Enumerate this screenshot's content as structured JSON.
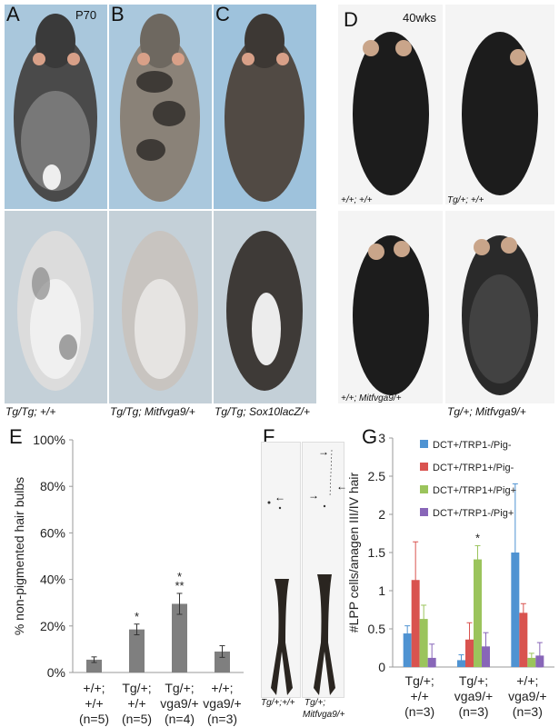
{
  "panels": {
    "A": {
      "letter": "A",
      "age": "P70",
      "caption": "Tg/Tg; +/+"
    },
    "B": {
      "letter": "B",
      "caption": "Tg/Tg; Mitfvga9/+"
    },
    "C": {
      "letter": "C",
      "caption": "Tg/Tg; Sox10lacZ/+"
    },
    "D": {
      "letter": "D",
      "age": "40wks",
      "captions": [
        "+/+; +/+",
        "Tg/+; +/+",
        "+/+; Mitfvga9/+",
        "Tg/+; Mitfvga9/+"
      ]
    },
    "E": {
      "letter": "E"
    },
    "F": {
      "letter": "F",
      "caption_left": "Tg/+;+/+",
      "caption_right_line1": "Tg/+;",
      "caption_right_line2": "Mitfvga9/+"
    },
    "G": {
      "letter": "G"
    }
  },
  "colors": {
    "bar_gray": "#7f7f7f",
    "dct_trp1neg_pigneg": "#4f93d2",
    "dct_trp1pos_pigneg": "#d9534f",
    "dct_trp1pos_pigpos": "#9bc45c",
    "dct_trp1neg_pigpos": "#8866b8",
    "photo_bg_blue": "#aac8dd",
    "photo_bg_white": "#f2f2f2",
    "mouse_black": "#1c1c1c"
  },
  "chart_data": [
    {
      "type": "bar",
      "panel": "E",
      "ylabel": "% non-pigmented hair bulbs",
      "ylim": [
        0,
        100
      ],
      "yticks": [
        "0%",
        "20%",
        "40%",
        "60%",
        "80%",
        "100%"
      ],
      "categories": [
        {
          "line1": "+/+;",
          "line2": "+/+",
          "line3": "(n=5)"
        },
        {
          "line1": "Tg/+;",
          "line2": "+/+",
          "line3": "(n=5)"
        },
        {
          "line1": "Tg/+;",
          "line2": "vga9/+",
          "line3": "(n=4)"
        },
        {
          "line1": "+/+;",
          "line2": "vga9/+",
          "line3": "(n=3)"
        }
      ],
      "values": [
        5.5,
        18.5,
        29.5,
        9
      ],
      "errors": [
        1.2,
        2.3,
        4.5,
        2.5
      ],
      "annotations": [
        {
          "category": 1,
          "text": "*"
        },
        {
          "category": 2,
          "text": "*"
        },
        {
          "category": 2,
          "text": "**"
        }
      ]
    },
    {
      "type": "bar",
      "panel": "G",
      "ylabel": "#LPP cells/anagen III/IV hair",
      "ylim": [
        0,
        3
      ],
      "yticks": [
        "0",
        "0.5",
        "1",
        "1.5",
        "2",
        "2.5",
        "3"
      ],
      "categories": [
        {
          "line1": "Tg/+;",
          "line2": "+/+",
          "line3": "(n=3)"
        },
        {
          "line1": "Tg/+;",
          "line2": "vga9/+",
          "line3": "(n=3)"
        },
        {
          "line1": "+/+;",
          "line2": "vga9/+",
          "line3": "(n=3)"
        }
      ],
      "series": [
        {
          "name": "DCT+/TRP1-/Pig-",
          "values": [
            0.44,
            0.09,
            1.5
          ],
          "errors": [
            0.1,
            0.07,
            0.9
          ]
        },
        {
          "name": "DCT+/TRP1+/Pig-",
          "values": [
            1.14,
            0.36,
            0.71
          ],
          "errors": [
            0.5,
            0.22,
            0.12
          ]
        },
        {
          "name": "DCT+/TRP1+/Pig+",
          "values": [
            0.63,
            1.41,
            0.12
          ],
          "errors": [
            0.18,
            0.18,
            0.06
          ]
        },
        {
          "name": "DCT+/TRP1-/Pig+",
          "values": [
            0.12,
            0.27,
            0.15
          ],
          "errors": [
            0.18,
            0.18,
            0.17
          ]
        }
      ],
      "annotations": [
        {
          "category": 1,
          "series": 2,
          "text": "*"
        }
      ],
      "legend": "top-right"
    }
  ]
}
